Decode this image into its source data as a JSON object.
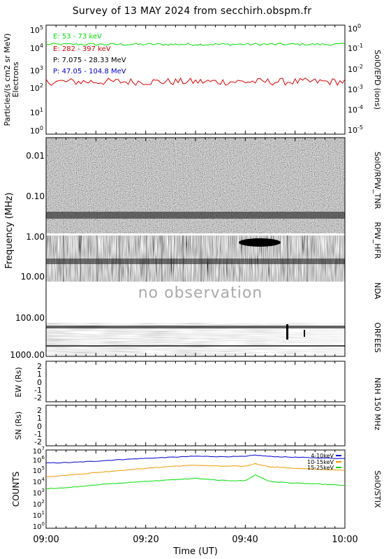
{
  "title": "Survey of 13 MAY 2024 from secchirh.obspm.fr",
  "no_observation_text": "no observation",
  "colors": {
    "green": "#00dd00",
    "red": "#dd0000",
    "blue": "#0000cc",
    "orange": "#ee9900",
    "black": "#000000"
  },
  "chart_data": [
    {
      "type": "line",
      "panel": "epd",
      "ylabel": "Particles/(s cm2 sr MeV)",
      "ylabel2": "Electrons",
      "right_label": "SolO/EPD  (ions)",
      "y_scale": "log",
      "ylim": [
        0.5,
        100000
      ],
      "y_ticks": [
        "10^0",
        "10^1",
        "10^2",
        "10^3",
        "10^4",
        "10^5"
      ],
      "y_right_ticks": [
        "10^-5",
        "10^-4",
        "10^-3",
        "10^-2",
        "10^-1",
        "10^0"
      ],
      "legend": [
        {
          "label": "E: 53 - 73 keV",
          "color": "#00dd00"
        },
        {
          "label": "E: 282 - 397 keV",
          "color": "#dd0000"
        },
        {
          "label": "P: 7.075 - 28.33 MeV",
          "color": "#000000"
        },
        {
          "label": "P: 47.05 - 104.8 MeV",
          "color": "#0000cc"
        }
      ],
      "series": [
        {
          "name": "E: 53 - 73 keV",
          "color": "#00dd00",
          "level": 18000
        },
        {
          "name": "E: 282 - 397 keV",
          "color": "#dd0000",
          "level": 250
        }
      ]
    },
    {
      "type": "heatmap",
      "panel": "radio",
      "ylabel": "Frequency (MHz)",
      "y_scale": "log",
      "y_ticks": [
        "0.01",
        "0.10",
        "1.00",
        "10.00",
        "100.00",
        "1000.00"
      ],
      "instruments": [
        "SolO/RPW_TNR",
        "RPW_HFR",
        "NDA",
        "ORFEES"
      ]
    },
    {
      "type": "scatter",
      "panel": "nrh-ew",
      "ylabel": "EW (Rs)",
      "ylim": [
        -2.5,
        2.5
      ],
      "y_ticks": [
        "-2",
        "-1",
        "0",
        "1",
        "2"
      ],
      "right_label": "NRH  150  MHz",
      "points": []
    },
    {
      "type": "scatter",
      "panel": "nrh-sn",
      "ylabel": "SN (Rs)",
      "ylim": [
        -2.5,
        2.5
      ],
      "y_ticks": [
        "-2",
        "-1",
        "0",
        "1",
        "2"
      ],
      "points": []
    },
    {
      "type": "line",
      "panel": "stix",
      "ylabel": "COUNTS",
      "right_label": "SolO/STIX",
      "y_scale": "log",
      "ylim": [
        1,
        20000000
      ],
      "y_ticks": [
        "10^0",
        "10^1",
        "10^2",
        "10^3",
        "10^4",
        "10^5",
        "10^6",
        "10^7"
      ],
      "xlabel": "Time (UT)",
      "x_ticks": [
        "09:00",
        "09:20",
        "09:40",
        "10:00"
      ],
      "legend": [
        {
          "label": "4-10keV",
          "color": "#0000cc"
        },
        {
          "label": "10-15keV",
          "color": "#ee9900"
        },
        {
          "label": "15-25keV",
          "color": "#00dd00"
        }
      ],
      "series": [
        {
          "name": "4-10keV",
          "color": "#0000cc",
          "x": [
            0,
            5,
            10,
            15,
            20,
            25,
            30,
            35,
            40,
            42,
            45,
            50,
            55,
            60
          ],
          "y": [
            800000,
            900000,
            1200000,
            1700000,
            2200000,
            2800000,
            3500000,
            3200000,
            3300000,
            4500000,
            3300000,
            2800000,
            2400000,
            2100000
          ]
        },
        {
          "name": "10-15keV",
          "color": "#ee9900",
          "x": [
            0,
            5,
            10,
            15,
            20,
            25,
            30,
            35,
            40,
            42,
            45,
            50,
            55,
            60
          ],
          "y": [
            40000,
            60000,
            100000,
            160000,
            250000,
            380000,
            500000,
            400000,
            400000,
            700000,
            350000,
            250000,
            200000,
            160000
          ]
        },
        {
          "name": "15-25keV",
          "color": "#00dd00",
          "x": [
            0,
            5,
            10,
            15,
            20,
            25,
            30,
            35,
            40,
            42,
            45,
            50,
            55,
            60
          ],
          "y": [
            3000,
            4000,
            7000,
            10000,
            15000,
            20000,
            28000,
            18000,
            17000,
            60000,
            14000,
            10000,
            8000,
            6000
          ]
        }
      ]
    }
  ]
}
